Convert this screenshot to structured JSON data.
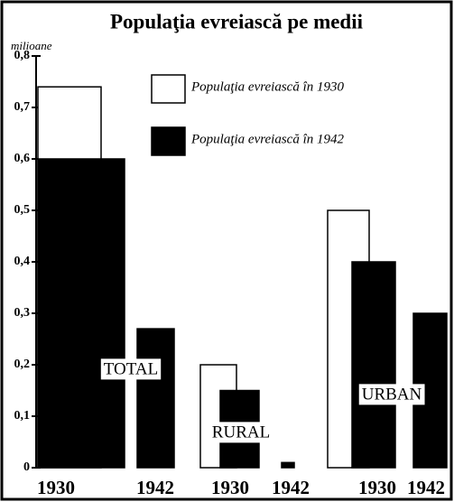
{
  "chart_data": {
    "type": "bar",
    "title": "Populaţia evreiască pe medii",
    "y_label": "milioane",
    "categories": [
      "TOTAL",
      "RURAL",
      "URBAN"
    ],
    "bar_labels": [
      "1930",
      "1942",
      "1930",
      "1942",
      "1930",
      "1942"
    ],
    "series": [
      {
        "name": "Populaţia evreiască în 1930",
        "color": "#ffffff",
        "values": [
          0.74,
          0.2,
          0.5
        ]
      },
      {
        "color": "#000000",
        "values": [
          0.6,
          0.15,
          0.4
        ]
      },
      {
        "name": "Populaţia evreiască în 1942",
        "color": "#000000",
        "values": [
          0.27,
          0.01,
          0.3
        ]
      }
    ],
    "ylim": [
      0,
      0.8
    ],
    "yticks": [
      0,
      {
        "value": 0.1,
        "label": "0,1"
      },
      {
        "value": 0.2,
        "label": "0,2"
      },
      {
        "value": 0.3,
        "label": "0,3"
      },
      {
        "value": 0.4,
        "label": "0,4"
      },
      {
        "value": 0.5,
        "label": "0,5"
      },
      {
        "value": 0.6,
        "label": "0,6"
      },
      {
        "value": 0.7,
        "label": "0,7"
      },
      {
        "value": 0.8,
        "label": "0,8"
      }
    ]
  }
}
